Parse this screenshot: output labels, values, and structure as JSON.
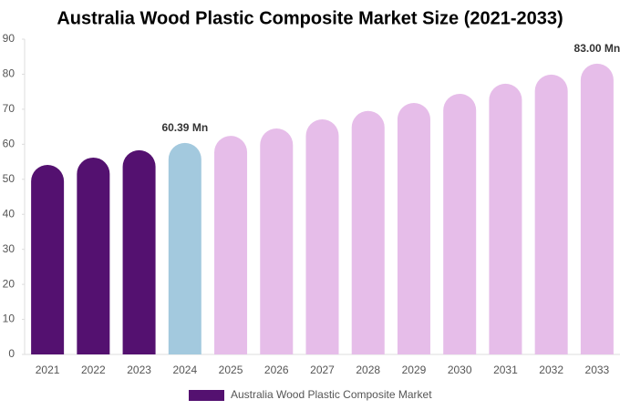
{
  "chart_data": {
    "type": "bar",
    "title": "Australia Wood Plastic Composite Market Size (2021-2033)",
    "categories": [
      "2021",
      "2022",
      "2023",
      "2024",
      "2025",
      "2026",
      "2027",
      "2028",
      "2029",
      "2030",
      "2031",
      "2032",
      "2033"
    ],
    "series": [
      {
        "name": "Australia Wood Plastic Composite Market",
        "color": "#541170",
        "colors": [
          "#541170",
          "#541170",
          "#541170",
          "#a3c9de",
          "#e6bde9",
          "#e6bde9",
          "#e6bde9",
          "#e6bde9",
          "#e6bde9",
          "#e6bde9",
          "#e6bde9",
          "#e6bde9",
          "#e6bde9"
        ],
        "values": [
          54.1,
          56.2,
          58.3,
          60.39,
          62.4,
          64.5,
          67.1,
          69.5,
          71.8,
          74.4,
          77.3,
          79.9,
          83.0
        ],
        "value_labels": [
          null,
          null,
          null,
          "60.39 Mn",
          null,
          null,
          null,
          null,
          null,
          null,
          null,
          null,
          "83.00 Mn"
        ]
      }
    ],
    "ylim": [
      0,
      90
    ],
    "yticks": [
      0,
      10,
      20,
      30,
      40,
      50,
      60,
      70,
      80,
      90
    ],
    "grid": false
  }
}
